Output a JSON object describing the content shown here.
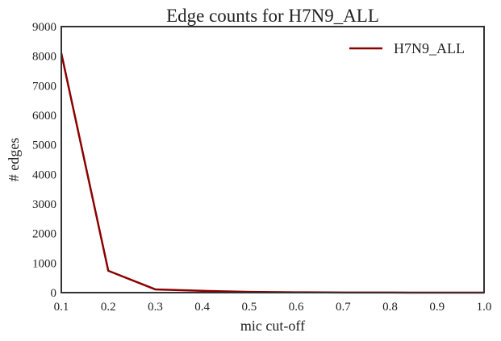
{
  "chart_data": {
    "type": "line",
    "title": "Edge counts for H7N9_ALL",
    "xlabel": "mic cut-off",
    "ylabel": "# edges",
    "xlim": [
      0.1,
      1.0
    ],
    "ylim": [
      0,
      9000
    ],
    "xticks": [
      "0.1",
      "0.2",
      "0.3",
      "0.4",
      "0.5",
      "0.6",
      "0.7",
      "0.8",
      "0.9",
      "1.0"
    ],
    "yticks": [
      "0",
      "1000",
      "2000",
      "3000",
      "4000",
      "5000",
      "6000",
      "7000",
      "8000",
      "9000"
    ],
    "grid": false,
    "legend_position": "upper right",
    "x": [
      0.1,
      0.2,
      0.3,
      0.4,
      0.5,
      0.6,
      0.7,
      0.8,
      0.9,
      1.0
    ],
    "series": [
      {
        "name": "H7N9_ALL",
        "color": "#8b0000",
        "values": [
          8100,
          740,
          110,
          60,
          25,
          10,
          5,
          2,
          1,
          0
        ]
      }
    ]
  }
}
